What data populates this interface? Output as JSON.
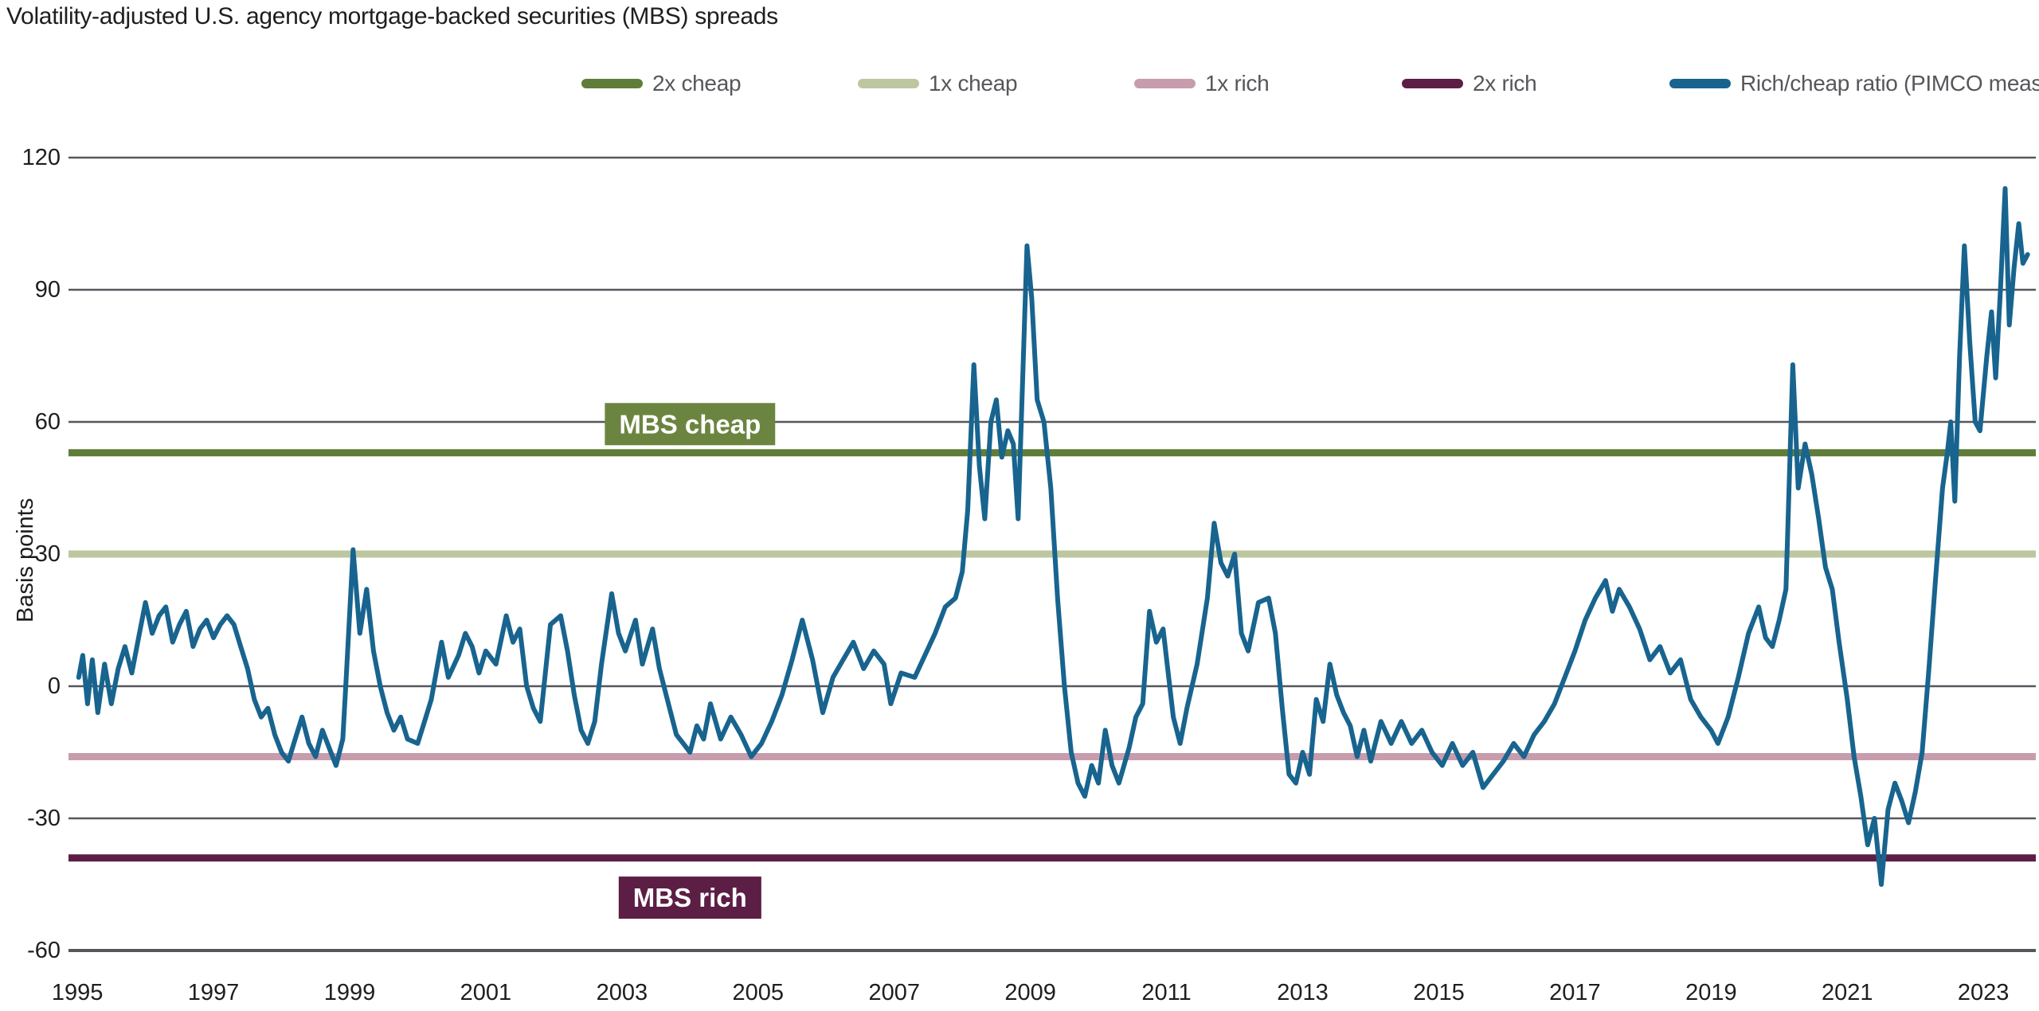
{
  "title": "Volatility-adjusted U.S. agency mortgage-backed securities (MBS) spreads",
  "y_axis": {
    "label": "Basis points",
    "ticks": [
      120,
      90,
      60,
      30,
      0,
      -30,
      -60
    ]
  },
  "x_axis": {
    "ticks": [
      1995,
      1997,
      1999,
      2001,
      2003,
      2005,
      2007,
      2009,
      2011,
      2013,
      2015,
      2017,
      2019,
      2021,
      2023
    ]
  },
  "legend": [
    {
      "label": "2x cheap",
      "color": "#5f7d38"
    },
    {
      "label": "1x cheap",
      "color": "#bcc7a0"
    },
    {
      "label": "1x rich",
      "color": "#c79cad"
    },
    {
      "label": "2x rich",
      "color": "#5c1e45"
    },
    {
      "label": "Rich/cheap ratio (PIMCO measure)",
      "color": "#18648f"
    }
  ],
  "annotations": [
    {
      "label": "MBS cheap",
      "color": "#6b8540",
      "year": 2004.0,
      "bp": 59.5
    },
    {
      "label": "MBS rich",
      "color": "#5c1e45",
      "year": 2004.0,
      "bp": -48
    }
  ],
  "colors": {
    "grid": "#55575c",
    "axis": "#4a4c52",
    "series": "#18648f"
  },
  "chart_data": {
    "type": "line",
    "title": "Volatility-adjusted U.S. agency mortgage-backed securities (MBS) spreads",
    "xlabel": "",
    "ylabel": "Basis points",
    "x_domain": [
      1994.87,
      2023.77
    ],
    "y_domain": [
      -60,
      120
    ],
    "grid": true,
    "legend_position": "top",
    "thresholds": [
      {
        "name": "2x cheap",
        "value": 53,
        "color": "#5f7d38"
      },
      {
        "name": "1x cheap",
        "value": 30,
        "color": "#bcc7a0"
      },
      {
        "name": "1x rich",
        "value": -16,
        "color": "#c79cad"
      },
      {
        "name": "2x rich",
        "value": -39,
        "color": "#5c1e45"
      }
    ],
    "series": [
      {
        "name": "Rich/cheap ratio (PIMCO measure)",
        "color": "#18648f",
        "points": [
          [
            1995.02,
            2
          ],
          [
            1995.08,
            7
          ],
          [
            1995.15,
            -4
          ],
          [
            1995.22,
            6
          ],
          [
            1995.3,
            -6
          ],
          [
            1995.4,
            5
          ],
          [
            1995.5,
            -4
          ],
          [
            1995.6,
            4
          ],
          [
            1995.7,
            9
          ],
          [
            1995.8,
            3
          ],
          [
            1995.9,
            11
          ],
          [
            1996.0,
            19
          ],
          [
            1996.1,
            12
          ],
          [
            1996.2,
            16
          ],
          [
            1996.3,
            18
          ],
          [
            1996.4,
            10
          ],
          [
            1996.5,
            14
          ],
          [
            1996.6,
            17
          ],
          [
            1996.7,
            9
          ],
          [
            1996.8,
            13
          ],
          [
            1996.9,
            15
          ],
          [
            1997.0,
            11
          ],
          [
            1997.1,
            14
          ],
          [
            1997.2,
            16
          ],
          [
            1997.3,
            14
          ],
          [
            1997.4,
            9
          ],
          [
            1997.5,
            4
          ],
          [
            1997.6,
            -3
          ],
          [
            1997.7,
            -7
          ],
          [
            1997.8,
            -5
          ],
          [
            1997.9,
            -11
          ],
          [
            1998.0,
            -15
          ],
          [
            1998.1,
            -17
          ],
          [
            1998.2,
            -12
          ],
          [
            1998.3,
            -7
          ],
          [
            1998.4,
            -13
          ],
          [
            1998.5,
            -16
          ],
          [
            1998.6,
            -10
          ],
          [
            1998.7,
            -14
          ],
          [
            1998.8,
            -18
          ],
          [
            1998.9,
            -12
          ],
          [
            1998.95,
            2
          ],
          [
            1999.05,
            31
          ],
          [
            1999.15,
            12
          ],
          [
            1999.25,
            22
          ],
          [
            1999.35,
            8
          ],
          [
            1999.45,
            0
          ],
          [
            1999.55,
            -6
          ],
          [
            1999.65,
            -10
          ],
          [
            1999.75,
            -7
          ],
          [
            1999.85,
            -12
          ],
          [
            2000.0,
            -13
          ],
          [
            2000.1,
            -8
          ],
          [
            2000.2,
            -3
          ],
          [
            2000.35,
            10
          ],
          [
            2000.45,
            2
          ],
          [
            2000.6,
            7
          ],
          [
            2000.7,
            12
          ],
          [
            2000.8,
            9
          ],
          [
            2000.9,
            3
          ],
          [
            2001.0,
            8
          ],
          [
            2001.15,
            5
          ],
          [
            2001.3,
            16
          ],
          [
            2001.4,
            10
          ],
          [
            2001.5,
            13
          ],
          [
            2001.6,
            0
          ],
          [
            2001.7,
            -5
          ],
          [
            2001.8,
            -8
          ],
          [
            2001.95,
            14
          ],
          [
            2002.1,
            16
          ],
          [
            2002.2,
            8
          ],
          [
            2002.3,
            -2
          ],
          [
            2002.4,
            -10
          ],
          [
            2002.5,
            -13
          ],
          [
            2002.6,
            -8
          ],
          [
            2002.7,
            5
          ],
          [
            2002.85,
            21
          ],
          [
            2002.95,
            12
          ],
          [
            2003.05,
            8
          ],
          [
            2003.2,
            15
          ],
          [
            2003.3,
            5
          ],
          [
            2003.45,
            13
          ],
          [
            2003.55,
            4
          ],
          [
            2003.65,
            -2
          ],
          [
            2003.8,
            -11
          ],
          [
            2003.9,
            -13
          ],
          [
            2004.0,
            -15
          ],
          [
            2004.1,
            -9
          ],
          [
            2004.2,
            -12
          ],
          [
            2004.3,
            -4
          ],
          [
            2004.45,
            -12
          ],
          [
            2004.6,
            -7
          ],
          [
            2004.75,
            -11
          ],
          [
            2004.9,
            -16
          ],
          [
            2005.05,
            -13
          ],
          [
            2005.2,
            -8
          ],
          [
            2005.35,
            -2
          ],
          [
            2005.5,
            6
          ],
          [
            2005.65,
            15
          ],
          [
            2005.8,
            6
          ],
          [
            2005.95,
            -6
          ],
          [
            2006.1,
            2
          ],
          [
            2006.25,
            6
          ],
          [
            2006.4,
            10
          ],
          [
            2006.55,
            4
          ],
          [
            2006.7,
            8
          ],
          [
            2006.85,
            5
          ],
          [
            2006.95,
            -4
          ],
          [
            2007.1,
            3
          ],
          [
            2007.3,
            2
          ],
          [
            2007.45,
            7
          ],
          [
            2007.6,
            12
          ],
          [
            2007.75,
            18
          ],
          [
            2007.9,
            20
          ],
          [
            2008.0,
            26
          ],
          [
            2008.08,
            40
          ],
          [
            2008.17,
            73
          ],
          [
            2008.25,
            50
          ],
          [
            2008.33,
            38
          ],
          [
            2008.42,
            60
          ],
          [
            2008.5,
            65
          ],
          [
            2008.58,
            52
          ],
          [
            2008.67,
            58
          ],
          [
            2008.75,
            55
          ],
          [
            2008.82,
            38
          ],
          [
            2008.95,
            100
          ],
          [
            2009.02,
            88
          ],
          [
            2009.1,
            65
          ],
          [
            2009.2,
            60
          ],
          [
            2009.3,
            45
          ],
          [
            2009.4,
            20
          ],
          [
            2009.5,
            0
          ],
          [
            2009.6,
            -15
          ],
          [
            2009.7,
            -22
          ],
          [
            2009.8,
            -25
          ],
          [
            2009.9,
            -18
          ],
          [
            2010.0,
            -22
          ],
          [
            2010.1,
            -10
          ],
          [
            2010.2,
            -18
          ],
          [
            2010.3,
            -22
          ],
          [
            2010.45,
            -14
          ],
          [
            2010.55,
            -7
          ],
          [
            2010.65,
            -4
          ],
          [
            2010.75,
            17
          ],
          [
            2010.85,
            10
          ],
          [
            2010.95,
            13
          ],
          [
            2011.1,
            -7
          ],
          [
            2011.2,
            -13
          ],
          [
            2011.3,
            -5
          ],
          [
            2011.45,
            5
          ],
          [
            2011.6,
            20
          ],
          [
            2011.7,
            37
          ],
          [
            2011.8,
            28
          ],
          [
            2011.9,
            25
          ],
          [
            2012.0,
            30
          ],
          [
            2012.1,
            12
          ],
          [
            2012.2,
            8
          ],
          [
            2012.35,
            19
          ],
          [
            2012.5,
            20
          ],
          [
            2012.6,
            12
          ],
          [
            2012.7,
            -5
          ],
          [
            2012.8,
            -20
          ],
          [
            2012.9,
            -22
          ],
          [
            2013.0,
            -15
          ],
          [
            2013.1,
            -20
          ],
          [
            2013.2,
            -3
          ],
          [
            2013.3,
            -8
          ],
          [
            2013.4,
            5
          ],
          [
            2013.5,
            -2
          ],
          [
            2013.6,
            -6
          ],
          [
            2013.7,
            -9
          ],
          [
            2013.8,
            -16
          ],
          [
            2013.9,
            -10
          ],
          [
            2014.0,
            -17
          ],
          [
            2014.15,
            -8
          ],
          [
            2014.3,
            -13
          ],
          [
            2014.45,
            -8
          ],
          [
            2014.6,
            -13
          ],
          [
            2014.75,
            -10
          ],
          [
            2014.9,
            -15
          ],
          [
            2015.05,
            -18
          ],
          [
            2015.2,
            -13
          ],
          [
            2015.35,
            -18
          ],
          [
            2015.5,
            -15
          ],
          [
            2015.65,
            -23
          ],
          [
            2015.8,
            -20
          ],
          [
            2015.95,
            -17
          ],
          [
            2016.1,
            -13
          ],
          [
            2016.25,
            -16
          ],
          [
            2016.4,
            -11
          ],
          [
            2016.55,
            -8
          ],
          [
            2016.7,
            -4
          ],
          [
            2016.85,
            2
          ],
          [
            2017.0,
            8
          ],
          [
            2017.15,
            15
          ],
          [
            2017.3,
            20
          ],
          [
            2017.45,
            24
          ],
          [
            2017.55,
            17
          ],
          [
            2017.65,
            22
          ],
          [
            2017.8,
            18
          ],
          [
            2017.95,
            13
          ],
          [
            2018.1,
            6
          ],
          [
            2018.25,
            9
          ],
          [
            2018.4,
            3
          ],
          [
            2018.55,
            6
          ],
          [
            2018.7,
            -3
          ],
          [
            2018.85,
            -7
          ],
          [
            2019.0,
            -10
          ],
          [
            2019.1,
            -13
          ],
          [
            2019.25,
            -7
          ],
          [
            2019.4,
            2
          ],
          [
            2019.55,
            12
          ],
          [
            2019.7,
            18
          ],
          [
            2019.8,
            11
          ],
          [
            2019.9,
            9
          ],
          [
            2020.0,
            15
          ],
          [
            2020.1,
            22
          ],
          [
            2020.2,
            73
          ],
          [
            2020.28,
            45
          ],
          [
            2020.38,
            55
          ],
          [
            2020.48,
            48
          ],
          [
            2020.58,
            38
          ],
          [
            2020.68,
            27
          ],
          [
            2020.78,
            22
          ],
          [
            2020.88,
            10
          ],
          [
            2021.0,
            -3
          ],
          [
            2021.1,
            -16
          ],
          [
            2021.2,
            -25
          ],
          [
            2021.3,
            -36
          ],
          [
            2021.4,
            -30
          ],
          [
            2021.5,
            -45
          ],
          [
            2021.6,
            -28
          ],
          [
            2021.7,
            -22
          ],
          [
            2021.8,
            -26
          ],
          [
            2021.9,
            -31
          ],
          [
            2022.0,
            -24
          ],
          [
            2022.1,
            -15
          ],
          [
            2022.2,
            4
          ],
          [
            2022.3,
            25
          ],
          [
            2022.4,
            45
          ],
          [
            2022.47,
            53
          ],
          [
            2022.52,
            60
          ],
          [
            2022.58,
            42
          ],
          [
            2022.65,
            75
          ],
          [
            2022.72,
            100
          ],
          [
            2022.8,
            78
          ],
          [
            2022.88,
            60
          ],
          [
            2022.95,
            58
          ],
          [
            2023.05,
            75
          ],
          [
            2023.12,
            85
          ],
          [
            2023.18,
            70
          ],
          [
            2023.25,
            90
          ],
          [
            2023.32,
            113
          ],
          [
            2023.38,
            82
          ],
          [
            2023.45,
            95
          ],
          [
            2023.52,
            105
          ],
          [
            2023.58,
            96
          ],
          [
            2023.65,
            98
          ]
        ]
      }
    ]
  }
}
